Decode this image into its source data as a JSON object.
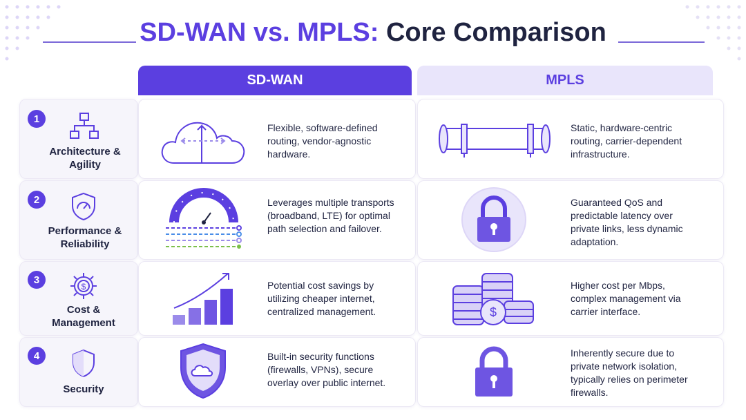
{
  "title": {
    "accent": "SD-WAN vs. MPLS:",
    "main": "Core Comparison"
  },
  "columns": [
    "SD-WAN",
    "MPLS"
  ],
  "rows": [
    {
      "number": "1",
      "label": "Architecture & Agility",
      "sdwan": "Flexible, software-defined routing, vendor-agnostic hardware.",
      "mpls": "Static, hardware-centric routing, carrier-dependent infrastructure."
    },
    {
      "number": "2",
      "label": "Performance & Reliability",
      "sdwan": "Leverages multiple transports (broadband, LTE) for optimal path selection and failover.",
      "mpls": "Guaranteed QoS and predictable latency over private links, less dynamic adaptation."
    },
    {
      "number": "3",
      "label": "Cost & Management",
      "sdwan": "Potential cost savings by utilizing cheaper internet, centralized management.",
      "mpls": "Higher cost per Mbps, complex management via carrier interface."
    },
    {
      "number": "4",
      "label": "Security",
      "sdwan": "Built-in security functions (firewalls, VPNs), secure overlay over public internet.",
      "mpls": "Inherently secure due to private network isolation, typically relies on perimeter firewalls."
    }
  ]
}
